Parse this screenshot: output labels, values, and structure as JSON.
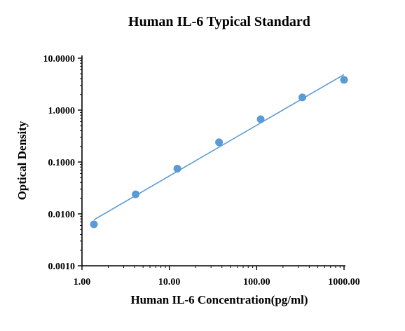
{
  "chart_data": {
    "type": "scatter",
    "title": "Human IL-6 Typical Standard",
    "xlabel": "Human IL-6 Concentration(pg/ml)",
    "ylabel": "Optical Density",
    "x_scale": "log",
    "y_scale": "log",
    "xlim": [
      1,
      1000
    ],
    "ylim": [
      0.001,
      10
    ],
    "x_ticks": [
      1,
      10,
      100,
      1000
    ],
    "x_tick_labels": [
      "1.00",
      "10.00",
      "100.00",
      "1000.00"
    ],
    "y_ticks": [
      0.001,
      0.01,
      0.1,
      1,
      10
    ],
    "y_tick_labels": [
      "0.0010",
      "0.0100",
      "0.1000",
      "1.0000",
      "10.0000"
    ],
    "grid": false,
    "legend": "none",
    "series": [
      {
        "x": [
          1.37,
          4.12,
          12.35,
          37.04,
          111.11,
          333.33,
          1000
        ],
        "y": [
          0.0063,
          0.0238,
          0.0745,
          0.2399,
          0.6682,
          1.7578,
          3.8237
        ]
      }
    ],
    "fit_line": {
      "x": [
        1.37,
        1000
      ],
      "y": [
        0.0077,
        4.85
      ]
    },
    "marker_color": "#5b9bd5",
    "line_color": "#5b9bd5"
  }
}
